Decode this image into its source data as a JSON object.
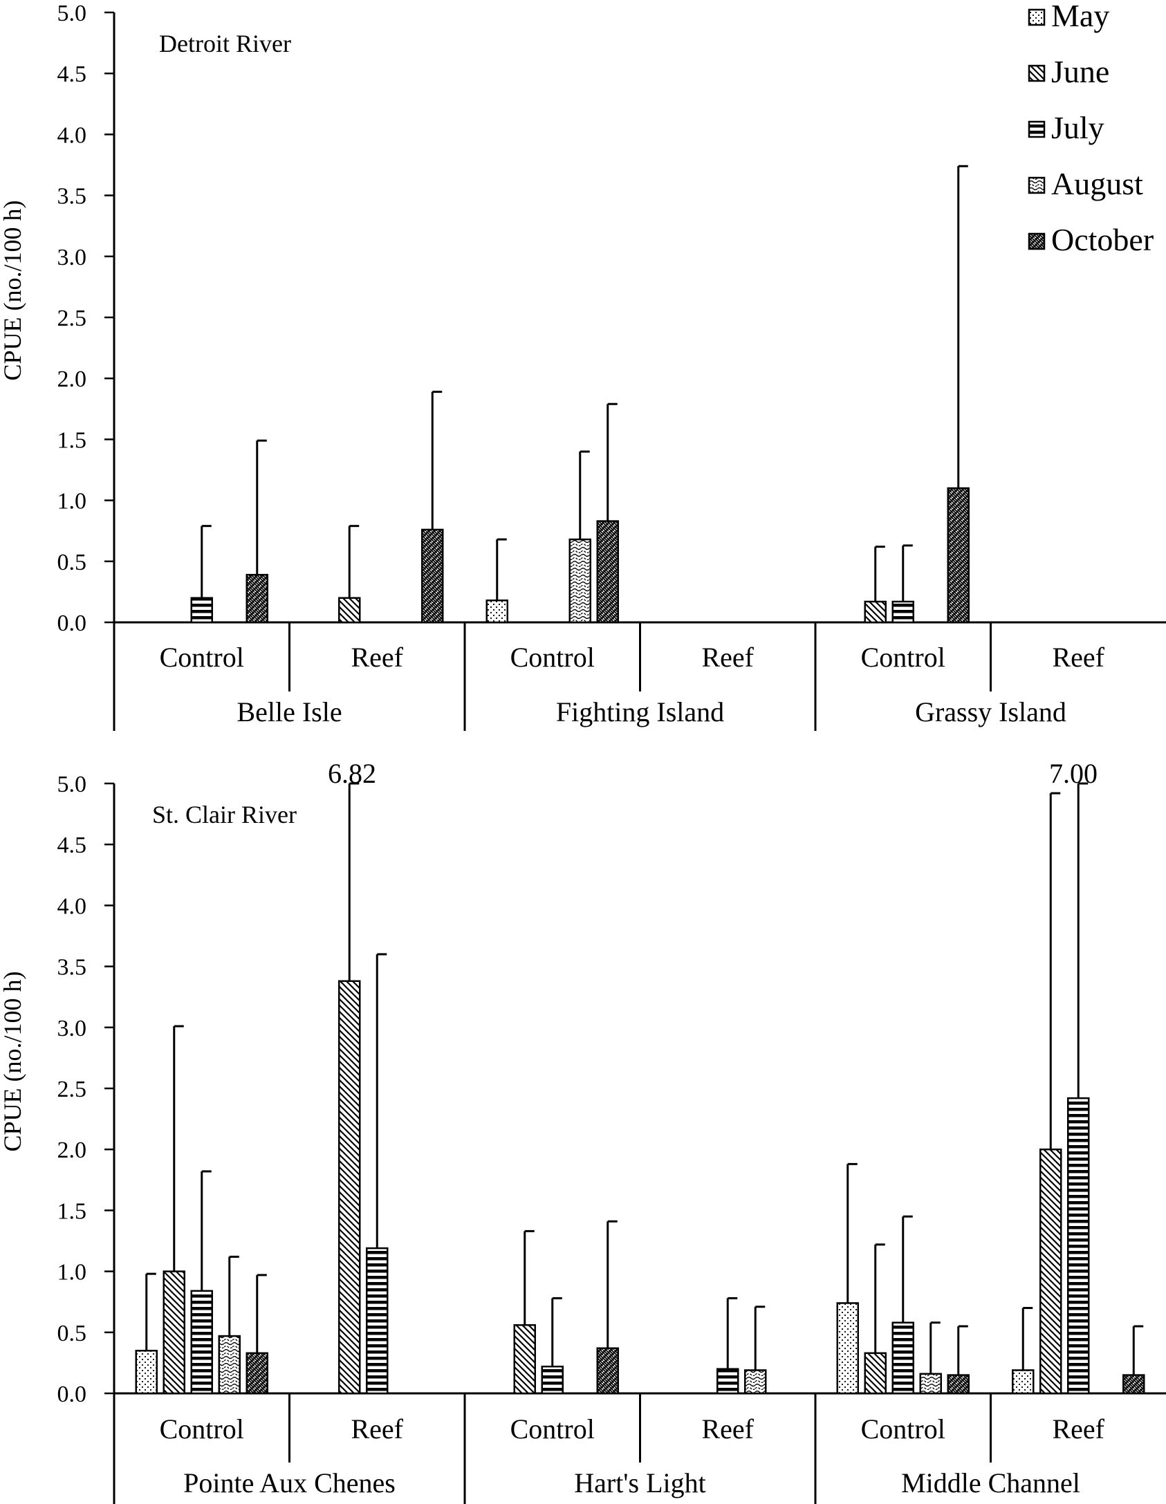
{
  "chart_data": [
    {
      "type": "bar",
      "title": "Detroit River",
      "ylabel": "CPUE (no./100 h)",
      "ylim": [
        0,
        5.0
      ],
      "yticks": [
        "0.0",
        "0.5",
        "1.0",
        "1.5",
        "2.0",
        "2.5",
        "3.0",
        "3.5",
        "4.0",
        "4.5",
        "5.0"
      ],
      "grid": false,
      "legend_position": "top-right",
      "series_names": [
        "May",
        "June",
        "July",
        "August",
        "October"
      ],
      "groups": [
        {
          "label": "Belle Isle",
          "categories": [
            {
              "label": "Control",
              "values": [
                0,
                0,
                0.2,
                0,
                0.39
              ],
              "errors": [
                null,
                null,
                0.79,
                null,
                1.49
              ]
            },
            {
              "label": "Reef",
              "values": [
                0,
                0.2,
                0,
                0,
                0.76
              ],
              "errors": [
                null,
                0.79,
                null,
                null,
                1.89
              ]
            }
          ]
        },
        {
          "label": "Fighting Island",
          "categories": [
            {
              "label": "Control",
              "values": [
                0.18,
                0,
                0,
                0.68,
                0.83
              ],
              "errors": [
                0.68,
                null,
                null,
                1.4,
                1.79
              ]
            },
            {
              "label": "Reef",
              "values": [
                0,
                0,
                0,
                0,
                0
              ],
              "errors": [
                null,
                null,
                null,
                null,
                null
              ]
            }
          ]
        },
        {
          "label": "Grassy Island",
          "categories": [
            {
              "label": "Control",
              "values": [
                0,
                0.17,
                0.17,
                0,
                1.1
              ],
              "errors": [
                null,
                0.62,
                0.63,
                null,
                3.74
              ]
            },
            {
              "label": "Reef",
              "values": [
                0,
                0,
                0,
                0,
                0
              ],
              "errors": [
                null,
                null,
                null,
                null,
                null
              ]
            }
          ]
        }
      ]
    },
    {
      "type": "bar",
      "title": "St. Clair River",
      "ylabel": "CPUE (no./100 h)",
      "ylim": [
        0,
        5.0
      ],
      "yticks": [
        "0.0",
        "0.5",
        "1.0",
        "1.5",
        "2.0",
        "2.5",
        "3.0",
        "3.5",
        "4.0",
        "4.5",
        "5.0"
      ],
      "grid": false,
      "series_names": [
        "May",
        "June",
        "July",
        "August",
        "October"
      ],
      "annotations": [
        "6.82",
        "7.00"
      ],
      "groups": [
        {
          "label": "Pointe Aux Chenes",
          "categories": [
            {
              "label": "Control",
              "values": [
                0.35,
                1.0,
                0.84,
                0.47,
                0.33
              ],
              "errors": [
                0.98,
                3.01,
                1.82,
                1.12,
                0.97
              ]
            },
            {
              "label": "Reef",
              "values": [
                0,
                3.38,
                1.19,
                0,
                0
              ],
              "errors": [
                null,
                6.82,
                3.6,
                null,
                null
              ]
            }
          ]
        },
        {
          "label": "Hart's Light",
          "categories": [
            {
              "label": "Control",
              "values": [
                0,
                0.56,
                0.22,
                0,
                0.37
              ],
              "errors": [
                null,
                1.33,
                0.78,
                null,
                1.41
              ]
            },
            {
              "label": "Reef",
              "values": [
                0,
                0,
                0.2,
                0.19,
                0
              ],
              "errors": [
                null,
                null,
                0.78,
                0.71,
                null
              ]
            }
          ]
        },
        {
          "label": "Middle Channel",
          "categories": [
            {
              "label": "Control",
              "values": [
                0.74,
                0.33,
                0.58,
                0.16,
                0.15
              ],
              "errors": [
                1.88,
                1.22,
                1.45,
                0.58,
                0.55
              ]
            },
            {
              "label": "Reef",
              "values": [
                0.19,
                2.0,
                2.42,
                0,
                0.15
              ],
              "errors": [
                0.7,
                4.92,
                7.0,
                null,
                0.55
              ]
            }
          ]
        }
      ]
    }
  ]
}
